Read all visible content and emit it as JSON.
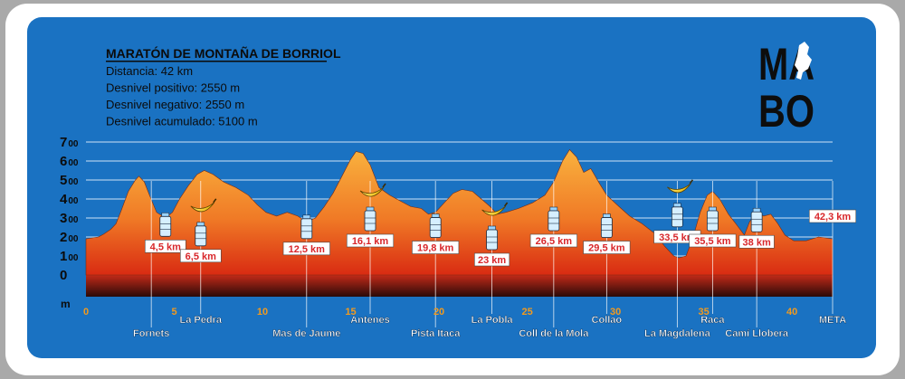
{
  "chart_data": {
    "type": "area",
    "title": "MARATÓN DE MONTAÑA DE BORRIOL",
    "stats": [
      "Distancia: 42 km",
      "Desnivel positivo: 2550 m",
      "Desnivel negativo: 2550 m",
      "Desnivel acumulado: 5100 m"
    ],
    "logo": [
      "MA",
      "BO"
    ],
    "y_unit": "m",
    "xlim": [
      0,
      42.3
    ],
    "ylim": [
      0,
      700
    ],
    "x_ticks": [
      0,
      5,
      10,
      15,
      20,
      25,
      30,
      35,
      40
    ],
    "y_ticks": [
      {
        "big": "0",
        "small": ""
      },
      {
        "big": "1",
        "small": "00"
      },
      {
        "big": "2",
        "small": "00"
      },
      {
        "big": "3",
        "small": "00"
      },
      {
        "big": "4",
        "small": "00"
      },
      {
        "big": "5",
        "small": "00"
      },
      {
        "big": "6",
        "small": "00"
      },
      {
        "big": "7",
        "small": "00"
      }
    ],
    "profile": [
      [
        0,
        190
      ],
      [
        0.7,
        200
      ],
      [
        1.0,
        215
      ],
      [
        1.4,
        240
      ],
      [
        1.7,
        270
      ],
      [
        2.0,
        340
      ],
      [
        2.4,
        440
      ],
      [
        2.8,
        500
      ],
      [
        3.0,
        520
      ],
      [
        3.3,
        490
      ],
      [
        3.6,
        420
      ],
      [
        4.0,
        330
      ],
      [
        4.5,
        300
      ],
      [
        4.9,
        330
      ],
      [
        5.3,
        400
      ],
      [
        5.8,
        470
      ],
      [
        6.3,
        530
      ],
      [
        6.7,
        550
      ],
      [
        7.2,
        530
      ],
      [
        7.8,
        490
      ],
      [
        8.5,
        460
      ],
      [
        9.2,
        420
      ],
      [
        9.7,
        370
      ],
      [
        10.2,
        330
      ],
      [
        10.8,
        310
      ],
      [
        11.4,
        330
      ],
      [
        12.0,
        310
      ],
      [
        12.5,
        280
      ],
      [
        13.0,
        300
      ],
      [
        13.5,
        360
      ],
      [
        14.0,
        430
      ],
      [
        14.5,
        520
      ],
      [
        15.0,
        610
      ],
      [
        15.3,
        650
      ],
      [
        15.7,
        640
      ],
      [
        16.1,
        580
      ],
      [
        16.6,
        460
      ],
      [
        17.2,
        420
      ],
      [
        17.8,
        390
      ],
      [
        18.4,
        360
      ],
      [
        19.0,
        350
      ],
      [
        19.4,
        320
      ],
      [
        19.8,
        330
      ],
      [
        20.3,
        380
      ],
      [
        20.8,
        430
      ],
      [
        21.3,
        450
      ],
      [
        21.9,
        440
      ],
      [
        22.4,
        400
      ],
      [
        22.9,
        360
      ],
      [
        23.3,
        320
      ],
      [
        23.8,
        330
      ],
      [
        24.5,
        350
      ],
      [
        25.3,
        380
      ],
      [
        26.0,
        420
      ],
      [
        26.5,
        490
      ],
      [
        27.0,
        600
      ],
      [
        27.4,
        660
      ],
      [
        27.8,
        620
      ],
      [
        28.2,
        540
      ],
      [
        28.6,
        560
      ],
      [
        29.1,
        480
      ],
      [
        29.5,
        420
      ],
      [
        30.2,
        360
      ],
      [
        30.8,
        310
      ],
      [
        31.5,
        270
      ],
      [
        32.2,
        220
      ],
      [
        32.8,
        150
      ],
      [
        33.3,
        100
      ],
      [
        33.6,
        90
      ],
      [
        34.0,
        100
      ],
      [
        34.4,
        200
      ],
      [
        34.8,
        330
      ],
      [
        35.2,
        420
      ],
      [
        35.5,
        440
      ],
      [
        35.9,
        400
      ],
      [
        36.4,
        320
      ],
      [
        36.9,
        260
      ],
      [
        37.3,
        210
      ],
      [
        37.6,
        280
      ],
      [
        38.0,
        330
      ],
      [
        38.4,
        310
      ],
      [
        38.8,
        320
      ],
      [
        39.2,
        270
      ],
      [
        39.6,
        210
      ],
      [
        40.1,
        180
      ],
      [
        40.8,
        180
      ],
      [
        41.5,
        200
      ],
      [
        42.3,
        190
      ]
    ],
    "stations": [
      {
        "km": 4.5,
        "label": "4,5 km",
        "banana": false,
        "drop": 270
      },
      {
        "km": 6.5,
        "label": "6,5 km",
        "banana": true,
        "drop": 220
      },
      {
        "km": 12.5,
        "label": "12,5 km",
        "banana": false,
        "drop": 258
      },
      {
        "km": 16.1,
        "label": "16,1 km",
        "banana": true,
        "drop": 300
      },
      {
        "km": 19.8,
        "label": "19,8 km",
        "banana": false,
        "drop": 264
      },
      {
        "km": 23,
        "label": "23 km",
        "banana": true,
        "drop": 200
      },
      {
        "km": 26.5,
        "label": "26,5 km",
        "banana": false,
        "drop": 300
      },
      {
        "km": 29.5,
        "label": "29,5 km",
        "banana": false,
        "drop": 264
      },
      {
        "km": 33.5,
        "label": "33,5 km",
        "banana": true,
        "drop": 320
      },
      {
        "km": 35.5,
        "label": "35,5 km",
        "banana": false,
        "drop": 300
      },
      {
        "km": 38,
        "label": "38 km",
        "banana": false,
        "drop": 294
      }
    ],
    "places": [
      {
        "km": 3.7,
        "name": "Fornets",
        "row": 2
      },
      {
        "km": 6.5,
        "name": "La Pedra",
        "row": 1
      },
      {
        "km": 12.5,
        "name": "Mas de Jaume",
        "row": 2
      },
      {
        "km": 16.1,
        "name": "Antenes",
        "row": 1
      },
      {
        "km": 19.8,
        "name": "Pista Itaca",
        "row": 2
      },
      {
        "km": 23,
        "name": "La Pobla",
        "row": 1
      },
      {
        "km": 26.5,
        "name": "Coll de la Mola",
        "row": 2
      },
      {
        "km": 29.5,
        "name": "Collao",
        "row": 1
      },
      {
        "km": 33.5,
        "name": "La Magdalena",
        "row": 2
      },
      {
        "km": 35.5,
        "name": "Raca",
        "row": 1
      },
      {
        "km": 38,
        "name": "Camí Llobera",
        "row": 2
      },
      {
        "km": 42.3,
        "name": "META",
        "row": 1
      }
    ],
    "finish_label": "42,3 km",
    "colors": {
      "bg": "#1a72c2",
      "area_top": "#f7a63a",
      "area_bottom": "#d92b12",
      "base_top": "#c22a18",
      "base_bottom": "#2a0a08",
      "grid": "#cfe3f5",
      "tick_orange": "#f29a1e",
      "label_red": "#d8262a"
    }
  }
}
